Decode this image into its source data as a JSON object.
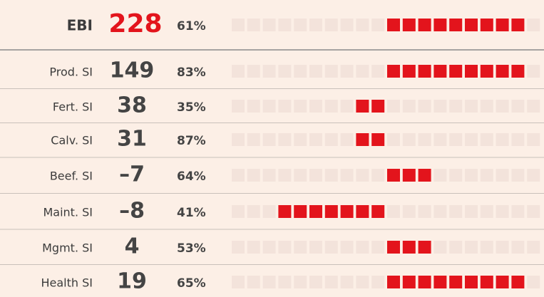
{
  "scale": [
    -10,
    10
  ],
  "rows": [
    {
      "label": "EBI",
      "value": 228,
      "pct": 61,
      "pct_label": "61%",
      "bar": [
        0,
        9
      ]
    },
    {
      "label": "Prod. SI",
      "value": 149,
      "pct": 83,
      "pct_label": "83%",
      "bar": [
        0,
        9
      ]
    },
    {
      "label": "Fert. SI",
      "value": 38,
      "pct": 35,
      "pct_label": "35%",
      "bar": [
        -2,
        0
      ]
    },
    {
      "label": "Calv. SI",
      "value": 31,
      "pct": 87,
      "pct_label": "87%",
      "bar": [
        -2,
        0
      ]
    },
    {
      "label": "Beef. SI",
      "value": -7,
      "value_label": "–7",
      "pct": 64,
      "pct_label": "64%",
      "bar": [
        0,
        3
      ]
    },
    {
      "label": "Maint. SI",
      "value": -8,
      "value_label": "–8",
      "pct": 41,
      "pct_label": "41%",
      "bar": [
        -7,
        0
      ]
    },
    {
      "label": "Mgmt. SI",
      "value": 4,
      "pct": 53,
      "pct_label": "53%",
      "bar": [
        0,
        3
      ]
    },
    {
      "label": "Health SI",
      "value": 19,
      "pct": 65,
      "pct_label": "65%",
      "bar": [
        0,
        9
      ]
    }
  ]
}
